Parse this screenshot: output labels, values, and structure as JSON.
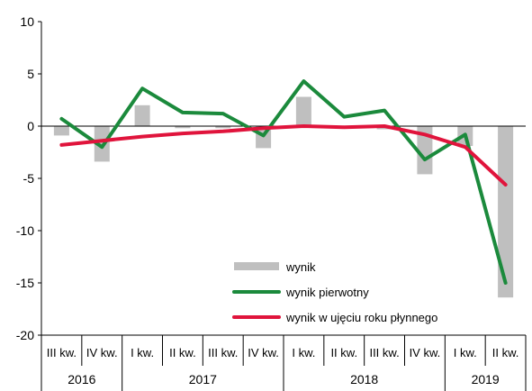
{
  "chart_data": {
    "type": "bar+line",
    "categories": [
      "III kw.",
      "IV kw.",
      "I kw.",
      "II kw.",
      "III kw.",
      "IV kw.",
      "I kw.",
      "II kw.",
      "III kw.",
      "IV kw.",
      "I kw.",
      "II kw."
    ],
    "groups": [
      {
        "label": "2016",
        "span": 2
      },
      {
        "label": "2017",
        "span": 4
      },
      {
        "label": "2018",
        "span": 4
      },
      {
        "label": "2019",
        "span": 2
      }
    ],
    "ylim": [
      -20,
      10
    ],
    "yticks": [
      10,
      5,
      0,
      -5,
      -10,
      -15,
      -20
    ],
    "grid": false,
    "legend_position": "bottom-right",
    "series": [
      {
        "name": "wynik",
        "type": "bar",
        "color": "#bfbfbf",
        "values": [
          -0.9,
          -3.4,
          2.0,
          -0.2,
          -0.2,
          -2.1,
          2.8,
          -0.1,
          -0.3,
          -4.6,
          -1.9,
          -16.4
        ]
      },
      {
        "name": "wynik pierwotny",
        "type": "line",
        "color": "#1b8a3c",
        "values": [
          0.7,
          -2.0,
          3.6,
          1.3,
          1.2,
          -0.9,
          4.3,
          0.9,
          1.5,
          -3.2,
          -0.8,
          -15.0
        ]
      },
      {
        "name": "wynik w ujęciu roku płynnego",
        "type": "line",
        "color": "#e0143c",
        "values": [
          -1.8,
          -1.4,
          -1.0,
          -0.7,
          -0.5,
          -0.2,
          0.0,
          -0.1,
          0.0,
          -0.8,
          -2.0,
          -5.6
        ]
      }
    ]
  }
}
